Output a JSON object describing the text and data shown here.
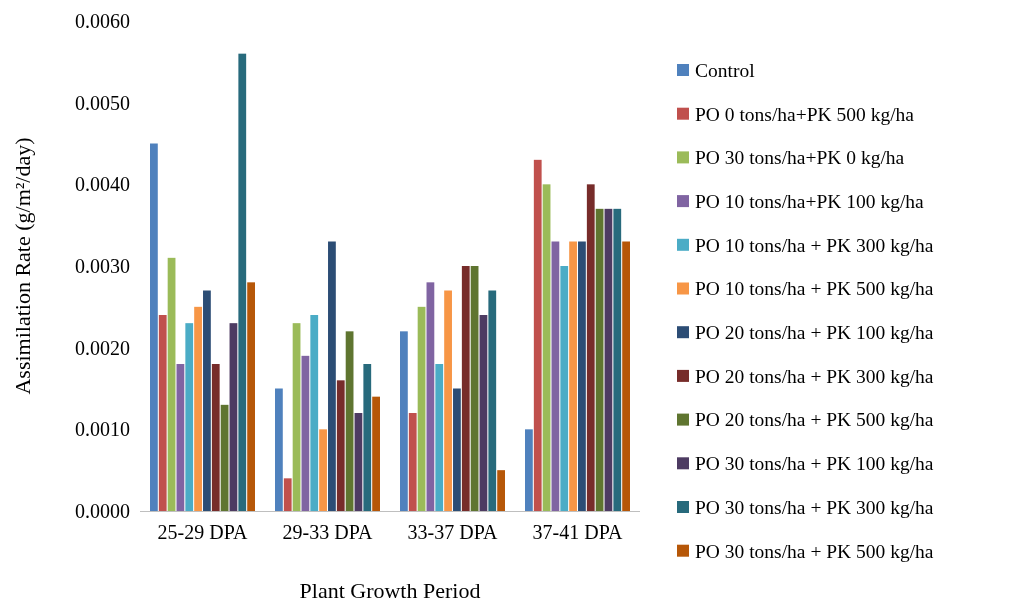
{
  "chart_data": {
    "type": "bar",
    "xlabel": "Plant Growth Period",
    "ylabel": "Assimilation Rate (g/m²/day)",
    "categories": [
      "25-29 DPA",
      "29-33 DPA",
      "33-37 DPA",
      "37-41 DPA"
    ],
    "ylim": [
      0,
      0.006
    ],
    "yticks": [
      {
        "value": 0,
        "label": "0.0000"
      },
      {
        "value": 0.001,
        "label": "0.0010"
      },
      {
        "value": 0.002,
        "label": "0.0020"
      },
      {
        "value": 0.003,
        "label": "0.0030"
      },
      {
        "value": 0.004,
        "label": "0.0040"
      },
      {
        "value": 0.005,
        "label": "0.0050"
      },
      {
        "value": 0.006,
        "label": "0.0060"
      }
    ],
    "grid": false,
    "legend": "right",
    "series": [
      {
        "name": "Control",
        "color": "#4f81bd",
        "values": [
          0.0045,
          0.0015,
          0.0022,
          0.001
        ]
      },
      {
        "name": "PO 0 tons/ha+PK 500 kg/ha",
        "color": "#c0504d",
        "values": [
          0.0024,
          0.0004,
          0.0012,
          0.0043
        ]
      },
      {
        "name": "PO 30 tons/ha+PK 0 kg/ha",
        "color": "#9bbb59",
        "values": [
          0.0031,
          0.0023,
          0.0025,
          0.004
        ]
      },
      {
        "name": "PO 10 tons/ha+PK 100 kg/ha",
        "color": "#8064a2",
        "values": [
          0.0018,
          0.0019,
          0.0028,
          0.0033
        ]
      },
      {
        "name": "PO 10 tons/ha + PK 300 kg/ha",
        "color": "#4bacc6",
        "values": [
          0.0023,
          0.0024,
          0.0018,
          0.003
        ]
      },
      {
        "name": "PO 10 tons/ha + PK 500 kg/ha",
        "color": "#f79646",
        "values": [
          0.0025,
          0.001,
          0.0027,
          0.0033
        ]
      },
      {
        "name": "PO 20 tons/ha + PK 100 kg/ha",
        "color": "#2c4d75",
        "values": [
          0.0027,
          0.0033,
          0.0015,
          0.0033
        ]
      },
      {
        "name": "PO 20 tons/ha + PK 300 kg/ha",
        "color": "#772c2a",
        "values": [
          0.0018,
          0.0016,
          0.003,
          0.004
        ]
      },
      {
        "name": "PO 20 tons/ha + PK 500 kg/ha",
        "color": "#5f7530",
        "values": [
          0.0013,
          0.0022,
          0.003,
          0.0037
        ]
      },
      {
        "name": "PO 30 tons/ha + PK 100 kg/ha",
        "color": "#4d3b62",
        "values": [
          0.0023,
          0.0012,
          0.0024,
          0.0037
        ]
      },
      {
        "name": "PO 30 tons/ha + PK 300 kg/ha",
        "color": "#276a7c",
        "values": [
          0.0056,
          0.0018,
          0.0027,
          0.0037
        ]
      },
      {
        "name": "PO 30 tons/ha + PK 500 kg/ha",
        "color": "#b65708",
        "values": [
          0.0028,
          0.0014,
          0.0005,
          0.0033
        ]
      }
    ]
  }
}
